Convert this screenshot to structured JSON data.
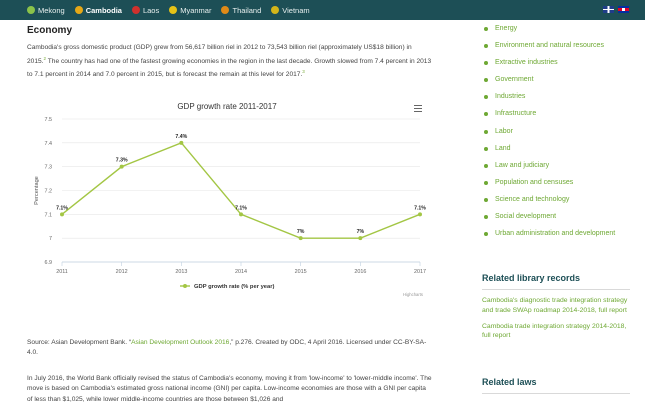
{
  "topbar": {
    "nav": [
      {
        "label": "Mekong",
        "icon": "mekong-icon",
        "color": "#8bc34a"
      },
      {
        "label": "Cambodia",
        "icon": "cambodia-icon",
        "color": "#e6a817",
        "active": true
      },
      {
        "label": "Laos",
        "icon": "laos-icon",
        "color": "#d0312d"
      },
      {
        "label": "Myanmar",
        "icon": "myanmar-icon",
        "color": "#e6c317"
      },
      {
        "label": "Thailand",
        "icon": "thailand-icon",
        "color": "#e08a17"
      },
      {
        "label": "Vietnam",
        "icon": "vietnam-icon",
        "color": "#d4b51a"
      }
    ],
    "flags": [
      "en-flag-icon",
      "khmer-flag-icon"
    ]
  },
  "main": {
    "heading": "Economy",
    "para1_a": "Cambodia's gross domestic product (GDP) grew from 56,617 billion riel in 2012 to 73,543 billion riel (approximately US$18 billion) in 2015.",
    "para1_sup1": "2",
    "para1_b": " The country has had one of the fastest growing economies in the region in the last decade. Growth slowed from 7.4 percent in 2013 to 7.1 percent in 2014 and 7.0 percent in 2015, but is forecast the remain at this level for 2017.",
    "para1_sup2": "3",
    "source_a": "Source: Asian Development Bank. “",
    "source_link": "Asian Development Outlook 2016",
    "source_b": ",” p.276. Created by ODC, 4 April 2016. Licensed under CC-BY-SA-4.0.",
    "para2": "In July 2016, the World Bank officially revised the status of Cambodia's economy, moving it from 'low-income' to 'lower-middle income'. The move is based on Cambodia's estimated gross national income (GNI) per capita. Low-income economies are those with a GNI per capita of less than $1,025, while lower middle-income countries are those between $1,026 and"
  },
  "chart_data": {
    "type": "line",
    "title": "GDP growth rate 2011-2017",
    "ylabel": "Percentage",
    "xlabel": "",
    "x": [
      "2011",
      "2012",
      "2013",
      "2014",
      "2015",
      "2016",
      "2017"
    ],
    "series": [
      {
        "name": "GDP growth rate (% per year)",
        "values": [
          7.1,
          7.3,
          7.4,
          7.1,
          7.0,
          7.0,
          7.1
        ],
        "labels": [
          "7.1%",
          "7.3%",
          "7.4%",
          "7.1%",
          "7%",
          "7%",
          "7.1%"
        ]
      }
    ],
    "yticks": [
      "6.9",
      "7",
      "7.1",
      "7.2",
      "7.3",
      "7.4",
      "7.5"
    ],
    "ylim": [
      6.9,
      7.5
    ],
    "grid": true,
    "legend": "bottom",
    "credit": "Highcharts",
    "color": "#a3c644"
  },
  "sidebar": {
    "topics": [
      "Energy",
      "Environment and natural resources",
      "Extractive industries",
      "Government",
      "Industries",
      "Infrastructure",
      "Labor",
      "Land",
      "Law and judiciary",
      "Population and censuses",
      "Science and technology",
      "Social development",
      "Urban administration and development"
    ],
    "related_library_heading": "Related library records",
    "related_library": [
      "Cambodia's diagnostic trade integration strategy and trade SWAp roadmap 2014-2018, full report",
      "Cambodia trade integration strategy 2014-2018, full report"
    ],
    "related_laws_heading": "Related laws"
  }
}
